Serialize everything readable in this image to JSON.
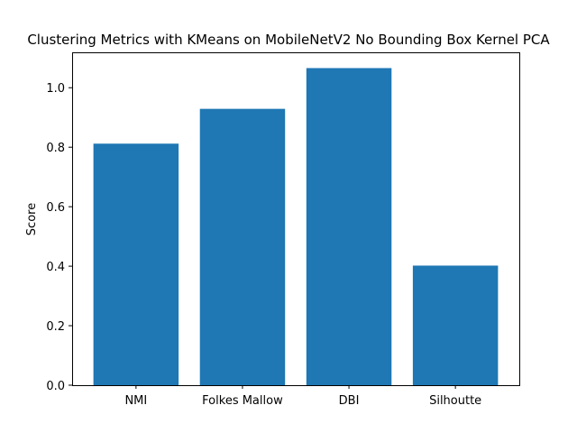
{
  "chart_data": {
    "type": "bar",
    "title": "Clustering Metrics with KMeans on MobileNetV2 No Bounding Box Kernel PCA",
    "xlabel": "",
    "ylabel": "Score",
    "categories": [
      "NMI",
      "Folkes Mallow",
      "DBI",
      "Silhoutte"
    ],
    "values": [
      0.812,
      0.929,
      1.066,
      0.402
    ],
    "ylim": [
      0,
      1.119
    ],
    "yticks": [
      0.0,
      0.2,
      0.4,
      0.6,
      0.8,
      1.0
    ],
    "ytick_labels": [
      "0.0",
      "0.2",
      "0.4",
      "0.6",
      "0.8",
      "1.0"
    ],
    "bar_color": "#1f77b4",
    "grid": false,
    "legend": "none"
  }
}
